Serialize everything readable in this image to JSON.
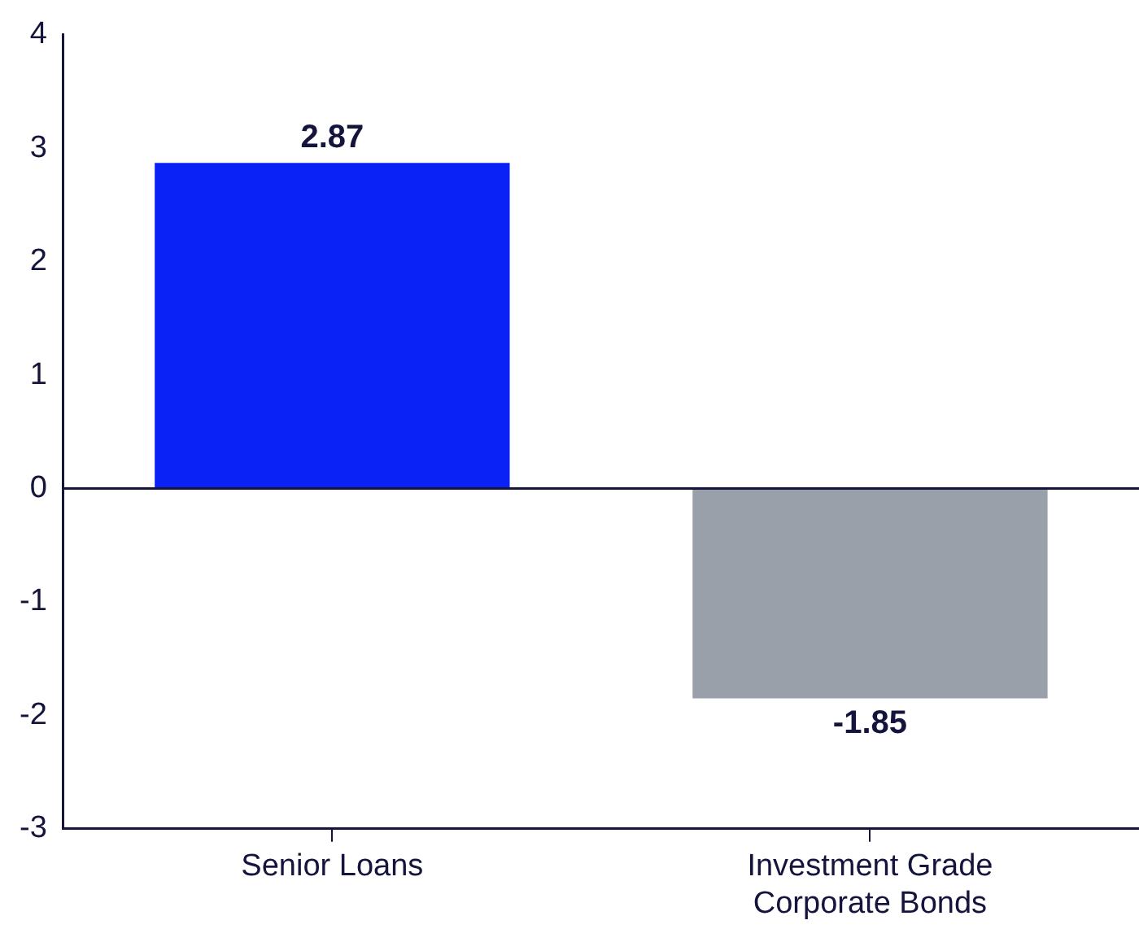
{
  "chart_data": {
    "type": "bar",
    "categories": [
      "Senior Loans",
      "Investment Grade Corporate Bonds"
    ],
    "values": [
      2.87,
      -1.85
    ],
    "colors": [
      "#0a22f5",
      "#9aa0a9"
    ],
    "ylim": [
      -3,
      4
    ],
    "yticks": [
      -3,
      -2,
      -1,
      0,
      1,
      2,
      3,
      4
    ],
    "grid": false,
    "ref_lines": [
      {
        "axis": "y",
        "value": 0,
        "color": "#14143c"
      }
    ],
    "legend": false,
    "data_labels": true
  }
}
